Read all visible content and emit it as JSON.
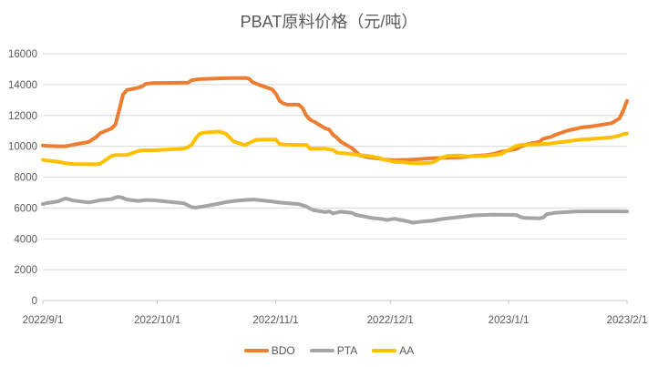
{
  "title": "PBAT原料价格（元/吨）",
  "colors": {
    "bdo": "#ED7D31",
    "pta": "#A5A5A5",
    "aa": "#FFC000",
    "gridline": "#D9D9D9",
    "axis_line": "#C9C9C9",
    "axis_label": "#595959",
    "title_text": "#595959",
    "background": "#FFFFFF"
  },
  "chart_data": {
    "type": "line",
    "title": "PBAT原料价格（元/吨）",
    "xlabel": "",
    "ylabel": "",
    "grid": true,
    "legend_position": "bottom",
    "y_axis": {
      "min": 0,
      "max": 16000,
      "step": 2000,
      "tick_labels": [
        "0",
        "2000",
        "4000",
        "6000",
        "8000",
        "10000",
        "12000",
        "14000",
        "16000"
      ]
    },
    "x_axis": {
      "tick_labels": [
        "2022/9/1",
        "2022/10/1",
        "2022/11/1",
        "2022/12/1",
        "2023/1/1",
        "2023/2/1"
      ]
    },
    "series": [
      {
        "name": "BDO",
        "color": "#ED7D31",
        "points": [
          [
            "2022/9/1",
            10050
          ],
          [
            "2022/9/2",
            10030
          ],
          [
            "2022/9/5",
            10000
          ],
          [
            "2022/9/7",
            10000
          ],
          [
            "2022/9/8",
            10050
          ],
          [
            "2022/9/9",
            10100
          ],
          [
            "2022/9/13",
            10280
          ],
          [
            "2022/9/14",
            10450
          ],
          [
            "2022/9/15",
            10600
          ],
          [
            "2022/9/16",
            10850
          ],
          [
            "2022/9/19",
            11150
          ],
          [
            "2022/9/20",
            11400
          ],
          [
            "2022/9/21",
            12350
          ],
          [
            "2022/9/22",
            13350
          ],
          [
            "2022/9/23",
            13650
          ],
          [
            "2022/9/26",
            13800
          ],
          [
            "2022/9/27",
            13880
          ],
          [
            "2022/9/28",
            14050
          ],
          [
            "2022/9/30",
            14100
          ],
          [
            "2022/10/9",
            14120
          ],
          [
            "2022/10/10",
            14280
          ],
          [
            "2022/10/12",
            14350
          ],
          [
            "2022/10/17",
            14400
          ],
          [
            "2022/10/20",
            14420
          ],
          [
            "2022/10/24",
            14430
          ],
          [
            "2022/10/25",
            14380
          ],
          [
            "2022/10/26",
            14150
          ],
          [
            "2022/10/28",
            13950
          ],
          [
            "2022/10/31",
            13700
          ],
          [
            "2022/11/1",
            13420
          ],
          [
            "2022/11/2",
            12950
          ],
          [
            "2022/11/3",
            12780
          ],
          [
            "2022/11/4",
            12700
          ],
          [
            "2022/11/7",
            12700
          ],
          [
            "2022/11/8",
            12480
          ],
          [
            "2022/11/9",
            12000
          ],
          [
            "2022/11/10",
            11720
          ],
          [
            "2022/11/11",
            11600
          ],
          [
            "2022/11/14",
            11150
          ],
          [
            "2022/11/15",
            11080
          ],
          [
            "2022/11/16",
            10750
          ],
          [
            "2022/11/17",
            10560
          ],
          [
            "2022/11/18",
            10300
          ],
          [
            "2022/11/21",
            9870
          ],
          [
            "2022/11/22",
            9650
          ],
          [
            "2022/11/23",
            9420
          ],
          [
            "2022/11/25",
            9300
          ],
          [
            "2022/11/28",
            9200
          ],
          [
            "2022/11/30",
            9130
          ],
          [
            "2022/12/2",
            9100
          ],
          [
            "2022/12/6",
            9130
          ],
          [
            "2022/12/8",
            9160
          ],
          [
            "2022/12/12",
            9220
          ],
          [
            "2022/12/15",
            9250
          ],
          [
            "2022/12/19",
            9280
          ],
          [
            "2022/12/21",
            9320
          ],
          [
            "2022/12/23",
            9380
          ],
          [
            "2022/12/26",
            9420
          ],
          [
            "2022/12/28",
            9500
          ],
          [
            "2022/12/30",
            9650
          ],
          [
            "2023/1/3",
            9820
          ],
          [
            "2023/1/4",
            9960
          ],
          [
            "2023/1/5",
            10050
          ],
          [
            "2023/1/6",
            10150
          ],
          [
            "2023/1/9",
            10280
          ],
          [
            "2023/1/10",
            10480
          ],
          [
            "2023/1/11",
            10550
          ],
          [
            "2023/1/12",
            10600
          ],
          [
            "2023/1/13",
            10720
          ],
          [
            "2023/1/16",
            10980
          ],
          [
            "2023/1/17",
            11050
          ],
          [
            "2023/1/18",
            11100
          ],
          [
            "2023/1/20",
            11220
          ],
          [
            "2023/1/23",
            11300
          ],
          [
            "2023/1/28",
            11500
          ],
          [
            "2023/1/30",
            11800
          ],
          [
            "2023/1/31",
            12300
          ],
          [
            "2023/2/1",
            12950
          ]
        ]
      },
      {
        "name": "PTA",
        "color": "#A5A5A5",
        "points": [
          [
            "2022/9/1",
            6250
          ],
          [
            "2022/9/2",
            6320
          ],
          [
            "2022/9/5",
            6430
          ],
          [
            "2022/9/6",
            6530
          ],
          [
            "2022/9/7",
            6620
          ],
          [
            "2022/9/8",
            6550
          ],
          [
            "2022/9/9",
            6480
          ],
          [
            "2022/9/13",
            6360
          ],
          [
            "2022/9/15",
            6450
          ],
          [
            "2022/9/16",
            6500
          ],
          [
            "2022/9/19",
            6580
          ],
          [
            "2022/9/20",
            6680
          ],
          [
            "2022/9/21",
            6720
          ],
          [
            "2022/9/22",
            6650
          ],
          [
            "2022/9/23",
            6550
          ],
          [
            "2022/9/26",
            6460
          ],
          [
            "2022/9/28",
            6520
          ],
          [
            "2022/9/30",
            6500
          ],
          [
            "2022/10/8",
            6300
          ],
          [
            "2022/10/10",
            6050
          ],
          [
            "2022/10/11",
            6020
          ],
          [
            "2022/10/13",
            6100
          ],
          [
            "2022/10/17",
            6280
          ],
          [
            "2022/10/19",
            6380
          ],
          [
            "2022/10/21",
            6450
          ],
          [
            "2022/10/24",
            6520
          ],
          [
            "2022/10/26",
            6550
          ],
          [
            "2022/10/28",
            6500
          ],
          [
            "2022/10/31",
            6420
          ],
          [
            "2022/11/2",
            6350
          ],
          [
            "2022/11/7",
            6250
          ],
          [
            "2022/11/9",
            6100
          ],
          [
            "2022/11/10",
            5950
          ],
          [
            "2022/11/11",
            5850
          ],
          [
            "2022/11/14",
            5730
          ],
          [
            "2022/11/15",
            5780
          ],
          [
            "2022/11/16",
            5650
          ],
          [
            "2022/11/18",
            5760
          ],
          [
            "2022/11/21",
            5680
          ],
          [
            "2022/11/22",
            5550
          ],
          [
            "2022/11/24",
            5460
          ],
          [
            "2022/11/26",
            5360
          ],
          [
            "2022/11/29",
            5280
          ],
          [
            "2022/11/30",
            5220
          ],
          [
            "2022/12/2",
            5300
          ],
          [
            "2022/12/5",
            5160
          ],
          [
            "2022/12/7",
            5050
          ],
          [
            "2022/12/9",
            5110
          ],
          [
            "2022/12/12",
            5170
          ],
          [
            "2022/12/14",
            5260
          ],
          [
            "2022/12/16",
            5330
          ],
          [
            "2022/12/19",
            5410
          ],
          [
            "2022/12/21",
            5470
          ],
          [
            "2022/12/23",
            5520
          ],
          [
            "2022/12/26",
            5550
          ],
          [
            "2022/12/28",
            5560
          ],
          [
            "2023/1/3",
            5550
          ],
          [
            "2023/1/4",
            5420
          ],
          [
            "2023/1/5",
            5360
          ],
          [
            "2023/1/9",
            5330
          ],
          [
            "2023/1/10",
            5370
          ],
          [
            "2023/1/11",
            5600
          ],
          [
            "2023/1/13",
            5680
          ],
          [
            "2023/1/16",
            5730
          ],
          [
            "2023/1/18",
            5760
          ],
          [
            "2023/1/20",
            5780
          ],
          [
            "2023/1/30",
            5780
          ],
          [
            "2023/2/1",
            5770
          ]
        ]
      },
      {
        "name": "AA",
        "color": "#FFC000",
        "points": [
          [
            "2022/9/1",
            9120
          ],
          [
            "2022/9/2",
            9080
          ],
          [
            "2022/9/5",
            9000
          ],
          [
            "2022/9/6",
            8950
          ],
          [
            "2022/9/7",
            8900
          ],
          [
            "2022/9/8",
            8870
          ],
          [
            "2022/9/9",
            8850
          ],
          [
            "2022/9/13",
            8830
          ],
          [
            "2022/9/15",
            8830
          ],
          [
            "2022/9/16",
            8860
          ],
          [
            "2022/9/19",
            9380
          ],
          [
            "2022/9/20",
            9430
          ],
          [
            "2022/9/23",
            9440
          ],
          [
            "2022/9/26",
            9690
          ],
          [
            "2022/9/27",
            9740
          ],
          [
            "2022/9/30",
            9740
          ],
          [
            "2022/10/8",
            9850
          ],
          [
            "2022/10/9",
            9950
          ],
          [
            "2022/10/10",
            10100
          ],
          [
            "2022/10/11",
            10500
          ],
          [
            "2022/10/12",
            10800
          ],
          [
            "2022/10/13",
            10880
          ],
          [
            "2022/10/14",
            10900
          ],
          [
            "2022/10/17",
            10950
          ],
          [
            "2022/10/18",
            10900
          ],
          [
            "2022/10/19",
            10800
          ],
          [
            "2022/10/20",
            10550
          ],
          [
            "2022/10/21",
            10300
          ],
          [
            "2022/10/24",
            10080
          ],
          [
            "2022/10/25",
            10200
          ],
          [
            "2022/10/26",
            10330
          ],
          [
            "2022/10/27",
            10420
          ],
          [
            "2022/10/31",
            10430
          ],
          [
            "2022/11/1",
            10430
          ],
          [
            "2022/11/2",
            10150
          ],
          [
            "2022/11/4",
            10100
          ],
          [
            "2022/11/9",
            10090
          ],
          [
            "2022/11/10",
            9840
          ],
          [
            "2022/11/14",
            9840
          ],
          [
            "2022/11/16",
            9760
          ],
          [
            "2022/11/17",
            9590
          ],
          [
            "2022/11/21",
            9500
          ],
          [
            "2022/11/23",
            9430
          ],
          [
            "2022/11/25",
            9380
          ],
          [
            "2022/11/28",
            9250
          ],
          [
            "2022/11/29",
            9160
          ],
          [
            "2022/11/30",
            9100
          ],
          [
            "2022/12/1",
            9050
          ],
          [
            "2022/12/2",
            9000
          ],
          [
            "2022/12/5",
            8950
          ],
          [
            "2022/12/7",
            8900
          ],
          [
            "2022/12/9",
            8900
          ],
          [
            "2022/12/12",
            8940
          ],
          [
            "2022/12/13",
            9060
          ],
          [
            "2022/12/14",
            9220
          ],
          [
            "2022/12/15",
            9300
          ],
          [
            "2022/12/16",
            9380
          ],
          [
            "2022/12/19",
            9400
          ],
          [
            "2022/12/21",
            9360
          ],
          [
            "2022/12/23",
            9350
          ],
          [
            "2022/12/26",
            9380
          ],
          [
            "2022/12/28",
            9420
          ],
          [
            "2022/12/30",
            9500
          ],
          [
            "2023/1/3",
            10020
          ],
          [
            "2023/1/4",
            10080
          ],
          [
            "2023/1/5",
            10100
          ],
          [
            "2023/1/9",
            10130
          ],
          [
            "2023/1/12",
            10180
          ],
          [
            "2023/1/13",
            10220
          ],
          [
            "2023/1/16",
            10300
          ],
          [
            "2023/1/18",
            10380
          ],
          [
            "2023/1/20",
            10430
          ],
          [
            "2023/1/23",
            10480
          ],
          [
            "2023/1/28",
            10580
          ],
          [
            "2023/1/30",
            10700
          ],
          [
            "2023/1/31",
            10780
          ],
          [
            "2023/2/1",
            10830
          ]
        ]
      }
    ]
  }
}
